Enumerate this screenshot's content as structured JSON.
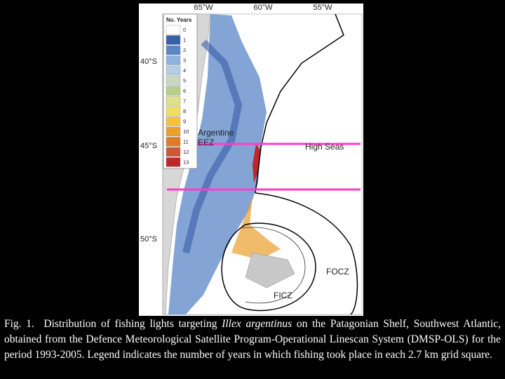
{
  "map": {
    "lon_labels": [
      "65°W",
      "60°W",
      "55°W"
    ],
    "lat_labels": [
      "40°S",
      "45°S",
      "50°S"
    ],
    "legend": {
      "title": "No. Years",
      "entries": [
        {
          "label": "0",
          "color": "#ffffff"
        },
        {
          "label": "1",
          "color": "#3a5ea8"
        },
        {
          "label": "2",
          "color": "#5a86c6"
        },
        {
          "label": "3",
          "color": "#8db2dc"
        },
        {
          "label": "4",
          "color": "#b5cde2"
        },
        {
          "label": "5",
          "color": "#c8d9c2"
        },
        {
          "label": "6",
          "color": "#b8cf8a"
        },
        {
          "label": "7",
          "color": "#dfe08c"
        },
        {
          "label": "8",
          "color": "#efdf5e"
        },
        {
          "label": "9",
          "color": "#f2c43a"
        },
        {
          "label": "10",
          "color": "#e9a02c"
        },
        {
          "label": "11",
          "color": "#df7a2a"
        },
        {
          "label": "12",
          "color": "#c85a36"
        },
        {
          "label": "13",
          "color": "#bf272a"
        }
      ]
    },
    "regions": {
      "eez": "Argentine EEZ",
      "high_seas": "High Seas",
      "focz": "FOCZ",
      "ficz": "FICZ"
    }
  },
  "caption": {
    "lead": "Fig. 1.",
    "before": "Distribution of fishing lights targeting",
    "species": "Illex argentinus",
    "after": "on the Patagonian Shelf, Southwest Atlantic, obtained from the Defence Meteorological Satellite Program-Operational Linescan System (DMSP-OLS) for the period 1993-2005. Legend indicates the number of years in which fishing took place in each 2.7 km grid square."
  }
}
